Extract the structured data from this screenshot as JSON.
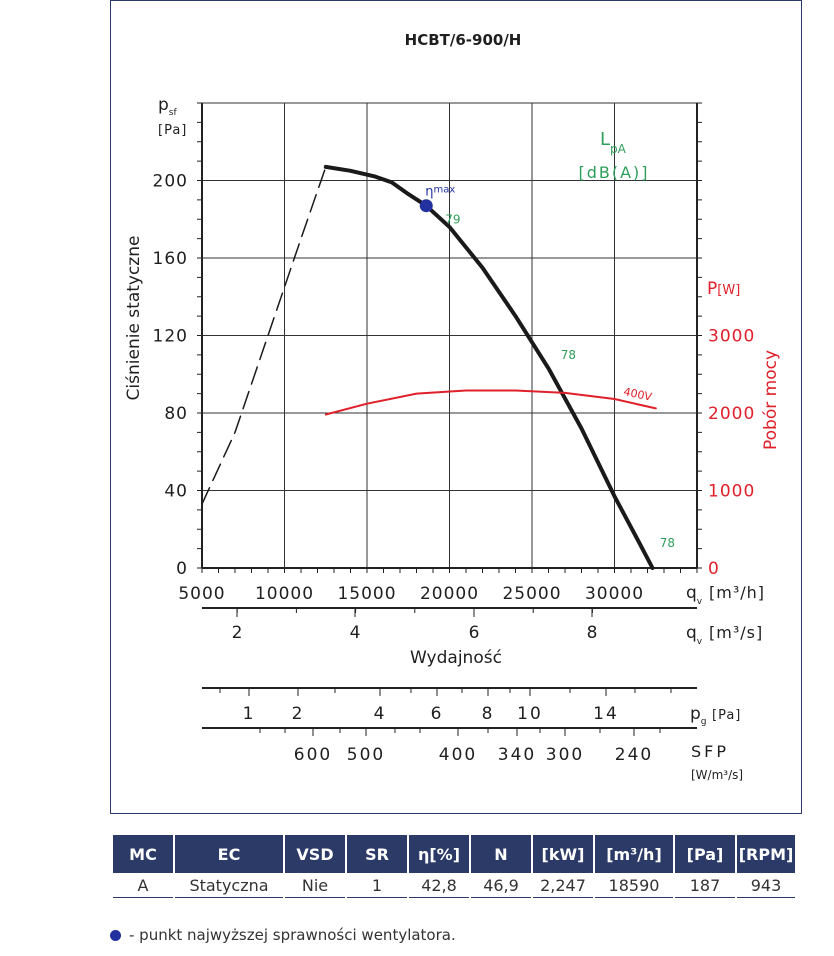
{
  "chart_data": {
    "type": "line",
    "title": "HCBT/6-900/H",
    "ylabel": "Ciśnienie statyczne",
    "ylabel_symbol": "p",
    "ylabel_sub": "sf",
    "y_unit": "[Pa]",
    "ylim": [
      0,
      240
    ],
    "y_ticks": [
      "0",
      "40",
      "80",
      "120",
      "160",
      "200"
    ],
    "y2label": "Pobór mocy",
    "y2_symbol": "P",
    "y2_unit": "[W]",
    "y2lim": [
      0,
      6000
    ],
    "y2_ticks": [
      "0",
      "1000",
      "2000",
      "3000"
    ],
    "xlabel": "Wydajność",
    "xlim": [
      5000,
      35000
    ],
    "x_ticks": [
      "5000",
      "10000",
      "15000",
      "20000",
      "25000",
      "30000"
    ],
    "x_unit_symbol": "q",
    "x_unit_sub": "v",
    "x_unit": "[m³/h]",
    "x2_ticks": [
      "2",
      "4",
      "6",
      "8"
    ],
    "x2_unit": "[m³/s]",
    "pg_ticks": [
      "1",
      "2",
      "4",
      "6",
      "8",
      "10",
      "14"
    ],
    "pg_symbol": "p",
    "pg_sub": "g",
    "pg_unit": "[Pa]",
    "sfp_ticks": [
      "600",
      "500",
      "400",
      "340",
      "300",
      "240"
    ],
    "sfp_label": "SFP",
    "sfp_unit": "[W/m³/s]",
    "lpa_label": "L",
    "lpa_sub": "pA",
    "lpa_unit": "[dB(A)]",
    "eta_label": "η",
    "eta_sub": "max",
    "series": [
      {
        "name": "static-pressure",
        "color": "#1a1a1a",
        "x": [
          12500,
          14000,
          15500,
          16500,
          17500,
          18590,
          20000,
          22000,
          24000,
          26000,
          28000,
          30000,
          31500,
          32300
        ],
        "y": [
          207,
          205,
          202,
          199,
          193,
          187,
          176,
          155,
          130,
          103,
          72,
          37,
          13,
          0
        ]
      },
      {
        "name": "stall-region",
        "color": "#1a1a1a",
        "dashed": true,
        "x": [
          5000,
          7000,
          9000,
          11000,
          12500
        ],
        "y": [
          33,
          70,
          120,
          170,
          207
        ]
      },
      {
        "name": "400V",
        "color": "#e0202a",
        "axis": "y2",
        "x": [
          12500,
          15000,
          18000,
          21000,
          24000,
          27000,
          30000,
          32500
        ],
        "y": [
          1980,
          2120,
          2250,
          2290,
          2290,
          2260,
          2180,
          2060
        ]
      }
    ],
    "noise_labels": [
      {
        "x": 19500,
        "y": 180,
        "text": "79"
      },
      {
        "x": 26500,
        "y": 110,
        "text": "78"
      },
      {
        "x": 32500,
        "y": 13,
        "text": "78"
      }
    ],
    "eta_point": {
      "x": 18590,
      "y": 187,
      "color": "#2230a0"
    }
  },
  "table": {
    "headers": [
      "MC",
      "EC",
      "VSD",
      "SR",
      "η[%]",
      "N",
      "[kW]",
      "[m³/h]",
      "[Pa]",
      "[RPM]"
    ],
    "rows": [
      [
        "A",
        "Statyczna",
        "Nie",
        "1",
        "42,8",
        "46,9",
        "2,247",
        "18590",
        "187",
        "943"
      ]
    ],
    "header_color": "#2b3a67"
  },
  "legend": {
    "text": "- punkt najwyższej sprawności wentylatora."
  }
}
